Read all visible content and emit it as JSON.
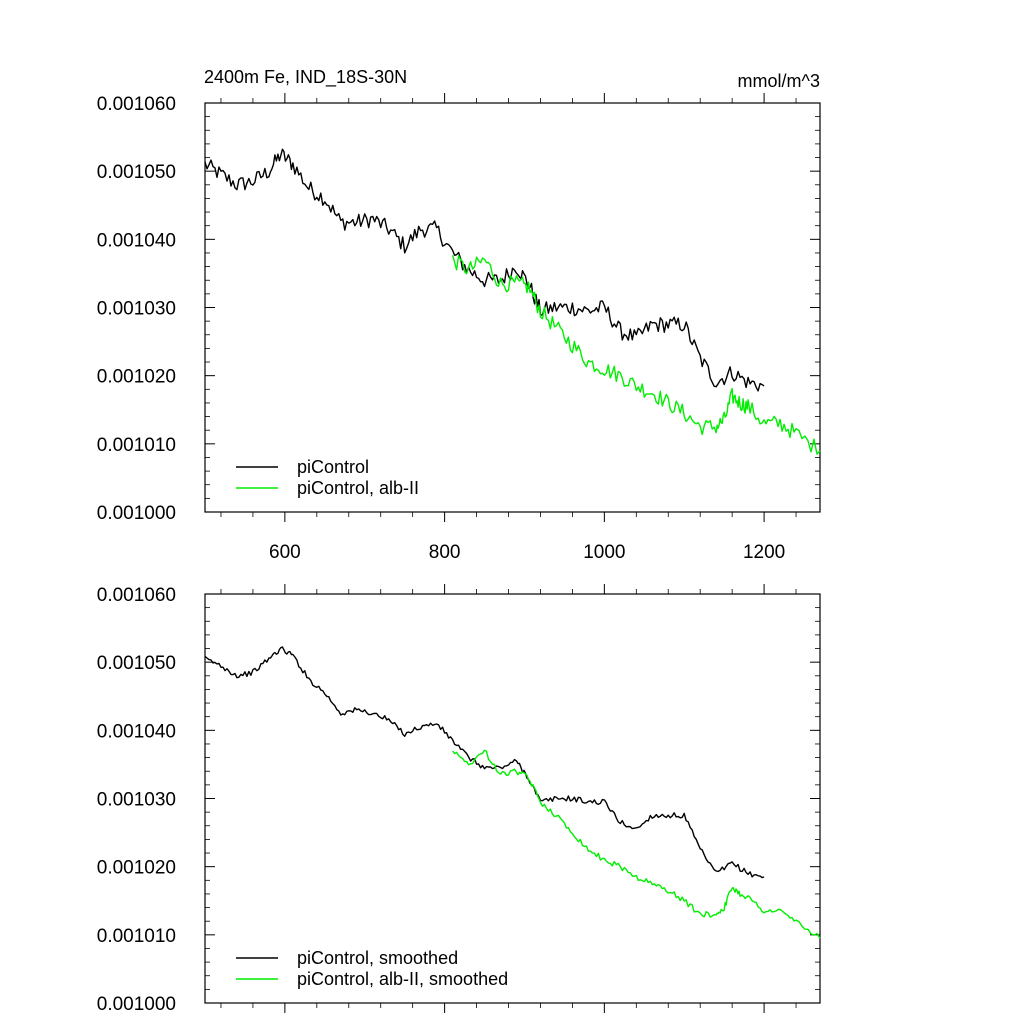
{
  "chart_data": [
    {
      "type": "line",
      "title": "2400m Fe, IND_18S-30N",
      "units": "mmol/m^3",
      "xlim": [
        500,
        1270
      ],
      "ylim": [
        0.001,
        0.00106
      ],
      "x_tick_labels": [
        "600",
        "800",
        "1000",
        "1200"
      ],
      "y_tick_labels": [
        "0.001000",
        "0.001010",
        "0.001020",
        "0.001030",
        "0.001040",
        "0.001050",
        "0.001060"
      ],
      "legend_position": "bottom-left",
      "series": [
        {
          "name": "piControl",
          "color": "#000000",
          "x": [
            500,
            520,
            540,
            560,
            580,
            595,
            610,
            630,
            650,
            670,
            690,
            710,
            730,
            750,
            770,
            790,
            810,
            830,
            850,
            870,
            890,
            905,
            920,
            940,
            960,
            980,
            1000,
            1020,
            1040,
            1060,
            1080,
            1100,
            1120,
            1140,
            1160,
            1180,
            1200
          ],
          "y": [
            0.001051,
            0.0010495,
            0.001048,
            0.0010485,
            0.00105,
            0.0010525,
            0.001051,
            0.0010475,
            0.001046,
            0.0010425,
            0.0010425,
            0.001043,
            0.0010415,
            0.001039,
            0.0010415,
            0.0010415,
            0.001038,
            0.0010355,
            0.001034,
            0.001034,
            0.001036,
            0.0010335,
            0.0010295,
            0.00103,
            0.00103,
            0.0010295,
            0.00103,
            0.0010265,
            0.0010255,
            0.0010275,
            0.0010275,
            0.0010275,
            0.0010225,
            0.001019,
            0.0010205,
            0.001019,
            0.0010185
          ]
        },
        {
          "name": "piControl, alb-II",
          "color": "#00ee00",
          "x": [
            810,
            830,
            850,
            870,
            890,
            905,
            920,
            940,
            960,
            980,
            1000,
            1020,
            1040,
            1060,
            1080,
            1100,
            1120,
            1140,
            1150,
            1160,
            1170,
            1180,
            1200,
            1220,
            1240,
            1270
          ],
          "y": [
            0.001037,
            0.0010355,
            0.001037,
            0.0010335,
            0.0010335,
            0.001033,
            0.0010295,
            0.001027,
            0.0010245,
            0.001022,
            0.001021,
            0.00102,
            0.0010185,
            0.0010175,
            0.001016,
            0.0010145,
            0.0010125,
            0.0010125,
            0.0010135,
            0.001017,
            0.001016,
            0.0010155,
            0.001013,
            0.001013,
            0.0010115,
            0.001009
          ]
        }
      ]
    },
    {
      "type": "line",
      "xlim": [
        500,
        1270
      ],
      "ylim": [
        0.001,
        0.00106
      ],
      "y_tick_labels": [
        "0.001000",
        "0.001010",
        "0.001020",
        "0.001030",
        "0.001040",
        "0.001050",
        "0.001060"
      ],
      "legend_position": "bottom-left",
      "series": [
        {
          "name": "piControl, smoothed",
          "color": "#000000",
          "x": [
            500,
            520,
            540,
            560,
            580,
            595,
            610,
            630,
            650,
            670,
            690,
            710,
            730,
            750,
            770,
            790,
            810,
            830,
            850,
            870,
            890,
            905,
            920,
            940,
            960,
            980,
            1000,
            1020,
            1040,
            1060,
            1080,
            1100,
            1120,
            1140,
            1160,
            1180,
            1200
          ],
          "y": [
            0.0010505,
            0.0010495,
            0.001048,
            0.0010485,
            0.0010505,
            0.001052,
            0.001051,
            0.0010475,
            0.0010455,
            0.0010425,
            0.001043,
            0.0010425,
            0.0010415,
            0.0010395,
            0.0010405,
            0.001041,
            0.0010385,
            0.001036,
            0.0010345,
            0.0010345,
            0.0010355,
            0.001033,
            0.0010295,
            0.00103,
            0.00103,
            0.0010295,
            0.0010295,
            0.0010265,
            0.0010255,
            0.0010275,
            0.0010275,
            0.0010275,
            0.0010225,
            0.001019,
            0.0010205,
            0.001019,
            0.0010185
          ]
        },
        {
          "name": "piControl, alb-II, smoothed",
          "color": "#00ee00",
          "x": [
            810,
            830,
            850,
            870,
            890,
            905,
            920,
            940,
            960,
            980,
            1000,
            1020,
            1040,
            1060,
            1080,
            1100,
            1120,
            1140,
            1150,
            1160,
            1170,
            1180,
            1200,
            1220,
            1240,
            1270
          ],
          "y": [
            0.001037,
            0.001035,
            0.001037,
            0.0010335,
            0.001034,
            0.001033,
            0.0010295,
            0.0010275,
            0.001025,
            0.0010225,
            0.001021,
            0.00102,
            0.0010185,
            0.0010175,
            0.0010165,
            0.001015,
            0.001013,
            0.001013,
            0.001014,
            0.001017,
            0.001016,
            0.0010155,
            0.0010135,
            0.0010135,
            0.001012,
            0.0010095
          ]
        }
      ]
    }
  ]
}
